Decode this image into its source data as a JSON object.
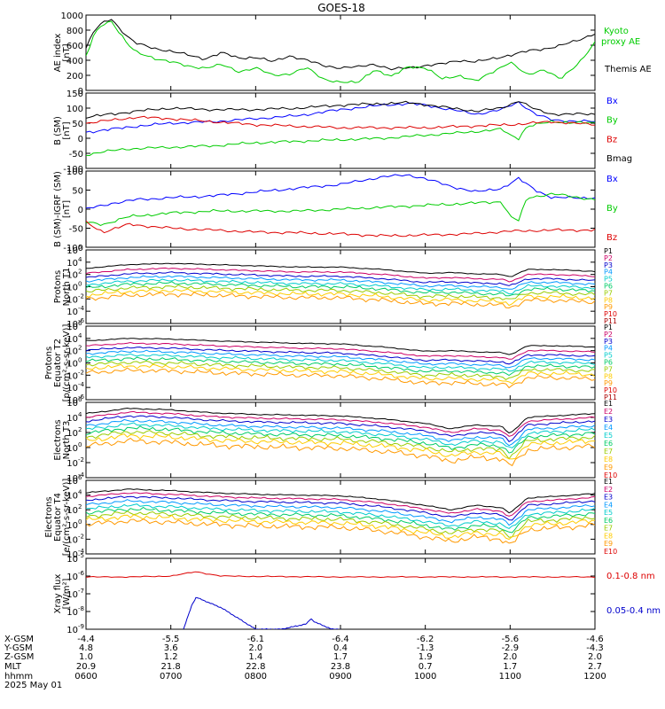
{
  "title": "GOES-18",
  "time_axis": {
    "start_hour": 6,
    "end_hour": 12,
    "tick_hours": [
      6,
      7,
      8,
      9,
      10,
      11,
      12
    ]
  },
  "chart_data": [
    {
      "type": "line",
      "name": "ae",
      "ylabel": [
        "AE index",
        "[nT]"
      ],
      "yscale": "linear",
      "ylim": [
        0,
        1000
      ],
      "yticks": [
        0,
        200,
        400,
        600,
        800,
        1000
      ],
      "series": [
        {
          "name": "Themis AE",
          "color": "#000000",
          "x": [
            6.0,
            6.1,
            6.2,
            6.3,
            6.4,
            6.5,
            6.6,
            6.8,
            7.0,
            7.2,
            7.4,
            7.6,
            7.8,
            8.0,
            8.2,
            8.4,
            8.6,
            8.8,
            9.0,
            9.2,
            9.4,
            9.6,
            9.8,
            10.0,
            10.2,
            10.4,
            10.6,
            10.8,
            11.0,
            11.2,
            11.4,
            11.6,
            11.8,
            12.0
          ],
          "y": [
            560,
            800,
            900,
            950,
            820,
            700,
            620,
            560,
            520,
            470,
            420,
            500,
            430,
            440,
            380,
            460,
            400,
            330,
            300,
            310,
            350,
            280,
            300,
            330,
            350,
            400,
            380,
            420,
            470,
            520,
            550,
            600,
            660,
            760
          ]
        },
        {
          "name": "Kyoto proxy AE",
          "color": "#00cc00",
          "x": [
            6.0,
            6.1,
            6.2,
            6.3,
            6.4,
            6.5,
            6.6,
            6.8,
            7.0,
            7.2,
            7.4,
            7.6,
            7.8,
            8.0,
            8.2,
            8.4,
            8.6,
            8.8,
            9.0,
            9.2,
            9.4,
            9.6,
            9.8,
            10.0,
            10.2,
            10.4,
            10.6,
            10.8,
            11.0,
            11.2,
            11.4,
            11.6,
            11.8,
            12.0
          ],
          "y": [
            450,
            750,
            880,
            920,
            760,
            600,
            500,
            430,
            380,
            320,
            300,
            340,
            250,
            300,
            200,
            220,
            300,
            150,
            110,
            100,
            280,
            180,
            320,
            300,
            150,
            200,
            120,
            250,
            380,
            200,
            280,
            150,
            350,
            640
          ]
        }
      ],
      "legend": [
        "Kyoto proxy AE",
        "Themis AE"
      ]
    },
    {
      "type": "line",
      "name": "bsm",
      "ylabel": [
        "B (SM)",
        "[nT]"
      ],
      "yscale": "linear",
      "ylim": [
        -100,
        150
      ],
      "yticks": [
        -100,
        -50,
        0,
        50,
        100,
        150
      ],
      "series": [
        {
          "name": "Bx",
          "color": "#0000ff",
          "x": [
            6.0,
            6.3,
            6.6,
            7.0,
            7.5,
            8.0,
            8.5,
            9.0,
            9.5,
            9.8,
            10.0,
            10.3,
            10.6,
            10.9,
            11.1,
            11.3,
            11.5,
            12.0
          ],
          "y": [
            20,
            30,
            40,
            50,
            55,
            65,
            75,
            95,
            110,
            115,
            110,
            95,
            80,
            95,
            120,
            80,
            60,
            55
          ]
        },
        {
          "name": "By",
          "color": "#00cc00",
          "x": [
            6.0,
            6.2,
            6.5,
            7.0,
            7.5,
            8.0,
            8.5,
            9.0,
            9.5,
            10.0,
            10.5,
            10.9,
            11.0,
            11.1,
            11.2,
            11.5,
            12.0
          ],
          "y": [
            -55,
            -45,
            -35,
            -30,
            -25,
            -15,
            -10,
            -5,
            0,
            10,
            20,
            30,
            10,
            0,
            40,
            55,
            50
          ]
        },
        {
          "name": "Bz",
          "color": "#dd0000",
          "x": [
            6.0,
            6.3,
            6.6,
            7.0,
            7.5,
            8.0,
            8.5,
            9.0,
            9.5,
            10.0,
            10.5,
            11.0,
            11.5,
            12.0
          ],
          "y": [
            50,
            60,
            70,
            65,
            55,
            45,
            40,
            35,
            35,
            35,
            40,
            45,
            55,
            45
          ]
        },
        {
          "name": "Bmag",
          "color": "#000000",
          "x": [
            6.0,
            6.3,
            6.6,
            7.0,
            7.5,
            8.0,
            8.5,
            9.0,
            9.5,
            9.8,
            10.0,
            10.3,
            10.6,
            10.9,
            11.1,
            11.3,
            11.5,
            12.0
          ],
          "y": [
            70,
            80,
            90,
            100,
            95,
            95,
            100,
            110,
            115,
            118,
            112,
            100,
            90,
            100,
            125,
            95,
            80,
            80
          ]
        }
      ],
      "legend": [
        "Bx",
        "By",
        "Bz",
        "Bmag"
      ]
    },
    {
      "type": "line",
      "name": "bigrf",
      "ylabel": [
        "B (SM)-IGRF (SM)",
        "[nT]"
      ],
      "yscale": "linear",
      "ylim": [
        -100,
        100
      ],
      "yticks": [
        -100,
        -50,
        0,
        50,
        100
      ],
      "series": [
        {
          "name": "Bx",
          "color": "#0000ff",
          "x": [
            6.0,
            6.3,
            6.6,
            7.0,
            7.5,
            8.0,
            8.5,
            9.0,
            9.5,
            9.8,
            10.0,
            10.3,
            10.6,
            10.9,
            11.1,
            11.3,
            11.5,
            12.0
          ],
          "y": [
            0,
            15,
            25,
            30,
            35,
            45,
            55,
            65,
            85,
            90,
            80,
            60,
            45,
            55,
            80,
            50,
            30,
            30
          ]
        },
        {
          "name": "By",
          "color": "#00cc00",
          "x": [
            6.0,
            6.2,
            6.5,
            7.0,
            7.5,
            8.0,
            8.5,
            9.0,
            9.5,
            10.0,
            10.5,
            10.9,
            11.0,
            11.1,
            11.2,
            11.5,
            12.0
          ],
          "y": [
            -35,
            -40,
            -20,
            -10,
            -5,
            -5,
            -5,
            0,
            5,
            10,
            15,
            20,
            -20,
            -30,
            30,
            40,
            25
          ]
        },
        {
          "name": "Bz",
          "color": "#dd0000",
          "x": [
            6.0,
            6.2,
            6.5,
            7.0,
            7.5,
            8.0,
            8.5,
            9.0,
            9.5,
            10.0,
            10.5,
            11.0,
            11.5,
            12.0
          ],
          "y": [
            -35,
            -60,
            -40,
            -50,
            -55,
            -60,
            -62,
            -65,
            -70,
            -68,
            -65,
            -58,
            -55,
            -55
          ]
        }
      ],
      "legend": [
        "Bx",
        "By",
        "Bz"
      ]
    },
    {
      "type": "line",
      "name": "protons_t1",
      "ylabel": [
        "Protons",
        "North T1"
      ],
      "yscale": "log",
      "ylim_exp": [
        -6,
        6
      ],
      "ytick_exps": [
        -6,
        -4,
        -2,
        0,
        2,
        4,
        6
      ],
      "channels": [
        "P1",
        "P2",
        "P3",
        "P4",
        "P5",
        "P6",
        "P7",
        "P8",
        "P9",
        "P10",
        "P11"
      ],
      "colors": [
        "#000000",
        "#cc0066",
        "#0000cc",
        "#0099ff",
        "#00cccc",
        "#00cc66",
        "#99cc00",
        "#ffcc00",
        "#ff9900",
        "#dd0000",
        "#aa0000"
      ],
      "x": [
        6.0,
        6.5,
        7.0,
        7.5,
        8.0,
        8.5,
        9.0,
        9.5,
        10.0,
        10.3,
        10.6,
        10.9,
        11.0,
        11.2,
        11.5,
        12.0
      ],
      "base": [
        3.0,
        3.6,
        3.8,
        3.6,
        3.4,
        3.2,
        3.2,
        2.8,
        2.2,
        2.3,
        2.1,
        2.0,
        1.6,
        2.8,
        2.8,
        2.5
      ],
      "offsets": [
        0,
        -0.8,
        -1.5,
        -2.1,
        -2.7,
        -3.2,
        -3.8,
        -4.4,
        -5.0
      ]
    },
    {
      "type": "line",
      "name": "protons_t2",
      "ylabel": [
        "Protons",
        "Equator T2",
        "[p/(cm²-s-sr-keV)]"
      ],
      "yscale": "log",
      "ylim_exp": [
        -6,
        6
      ],
      "ytick_exps": [
        -6,
        -4,
        -2,
        0,
        2,
        4,
        6
      ],
      "channels": [
        "P1",
        "P2",
        "P3",
        "P4",
        "P5",
        "P6",
        "P7",
        "P8",
        "P9",
        "P10",
        "P11"
      ],
      "colors": [
        "#000000",
        "#cc0066",
        "#0000cc",
        "#0099ff",
        "#00cccc",
        "#00cc66",
        "#99cc00",
        "#ffcc00",
        "#ff9900",
        "#dd0000",
        "#aa0000"
      ],
      "x": [
        6.0,
        6.5,
        7.0,
        7.5,
        8.0,
        8.5,
        9.0,
        9.5,
        10.0,
        10.3,
        10.6,
        10.9,
        11.0,
        11.2,
        11.5,
        12.0
      ],
      "base": [
        3.6,
        4.0,
        3.9,
        3.6,
        3.4,
        3.2,
        3.1,
        2.6,
        1.9,
        2.0,
        1.8,
        1.7,
        1.3,
        2.8,
        2.8,
        2.6
      ],
      "offsets": [
        0,
        -0.8,
        -1.5,
        -2.1,
        -2.7,
        -3.3,
        -3.9,
        -4.5,
        -5.2
      ]
    },
    {
      "type": "line",
      "name": "electrons_t3",
      "ylabel": [
        "Electrons",
        "North T3"
      ],
      "yscale": "log",
      "ylim_exp": [
        -4,
        6
      ],
      "ytick_exps": [
        -4,
        -2,
        0,
        2,
        4,
        6
      ],
      "channels": [
        "E1",
        "E2",
        "E3",
        "E4",
        "E5",
        "E6",
        "E7",
        "E8",
        "E9",
        "E10"
      ],
      "colors": [
        "#000000",
        "#cc0066",
        "#0000cc",
        "#0099ff",
        "#00cccc",
        "#00cc66",
        "#99cc00",
        "#ffcc00",
        "#ff9900",
        "#dd0000"
      ],
      "x": [
        6.0,
        6.5,
        7.0,
        7.5,
        8.0,
        8.5,
        9.0,
        9.5,
        10.0,
        10.3,
        10.6,
        10.9,
        11.0,
        11.2,
        11.5,
        12.0
      ],
      "base": [
        4.5,
        5.2,
        5.0,
        4.6,
        4.4,
        4.3,
        4.2,
        3.8,
        3.2,
        2.5,
        3.0,
        2.8,
        1.8,
        4.0,
        4.2,
        4.5
      ],
      "offsets": [
        0,
        -0.5,
        -1.0,
        -1.6,
        -2.1,
        -2.6,
        -3.1,
        -3.6,
        -4.3
      ]
    },
    {
      "type": "line",
      "name": "electrons_t4",
      "ylabel": [
        "Electrons",
        "Equator T4",
        "[e/(cm²-s-sr-keV)]"
      ],
      "yscale": "log",
      "ylim_exp": [
        -4,
        6
      ],
      "ytick_exps": [
        -4,
        -2,
        0,
        2,
        4,
        6
      ],
      "channels": [
        "E1",
        "E2",
        "E3",
        "E4",
        "E5",
        "E6",
        "E7",
        "E8",
        "E9",
        "E10"
      ],
      "colors": [
        "#000000",
        "#cc0066",
        "#0000cc",
        "#0099ff",
        "#00cccc",
        "#00cc66",
        "#99cc00",
        "#ffcc00",
        "#ff9900",
        "#dd0000"
      ],
      "x": [
        6.0,
        6.5,
        7.0,
        7.5,
        8.0,
        8.5,
        9.0,
        9.5,
        10.0,
        10.3,
        10.6,
        10.9,
        11.0,
        11.2,
        11.5,
        12.0
      ],
      "base": [
        4.3,
        4.8,
        4.6,
        4.3,
        4.1,
        4.0,
        3.9,
        3.4,
        2.6,
        2.0,
        2.6,
        2.3,
        1.5,
        3.6,
        3.8,
        4.2
      ],
      "offsets": [
        0,
        -0.5,
        -1.0,
        -1.6,
        -2.2,
        -2.7,
        -3.2,
        -3.7,
        -4.3
      ]
    },
    {
      "type": "line",
      "name": "xray",
      "ylabel": [
        "Xray flux",
        "[W/m²]"
      ],
      "yscale": "log",
      "ylim_exp": [
        -9,
        -5
      ],
      "ytick_exps": [
        -9,
        -8,
        -7,
        -6,
        -5
      ],
      "series": [
        {
          "name": "0.1-0.8 nm",
          "color": "#dd0000",
          "x": [
            6.0,
            6.5,
            7.0,
            7.3,
            7.4,
            7.6,
            8.0,
            9.0,
            10.0,
            11.0,
            12.0
          ],
          "y": [
            -6.05,
            -6.05,
            -6.0,
            -5.75,
            -5.85,
            -6.0,
            -6.02,
            -6.05,
            -6.05,
            -6.05,
            -6.05
          ]
        },
        {
          "name": "0.05-0.4 nm",
          "color": "#0000cc",
          "x": [
            7.15,
            7.2,
            7.25,
            7.3,
            7.4,
            7.5,
            7.6,
            7.7,
            7.8,
            7.9,
            8.0,
            8.3,
            8.4,
            8.6,
            8.65,
            8.7,
            8.8,
            8.9,
            9.0
          ],
          "y": [
            -9.0,
            -8.3,
            -7.6,
            -7.2,
            -7.4,
            -7.6,
            -7.8,
            -8.1,
            -8.4,
            -8.7,
            -9.0,
            -9.0,
            -8.9,
            -8.7,
            -8.4,
            -8.6,
            -8.8,
            -9.0,
            -9.0
          ]
        }
      ],
      "legend": [
        "0.1-0.8 nm",
        "0.05-0.4 nm"
      ]
    }
  ],
  "ephemeris": {
    "labels": [
      "X-GSM",
      "Y-GSM",
      "Z-GSM",
      "MLT",
      "hhmm",
      "2025 May 01"
    ],
    "rows": [
      [
        "-4.4",
        "-5.5",
        "-6.1",
        "-6.4",
        "-6.2",
        "-5.6",
        "-4.6"
      ],
      [
        "4.8",
        "3.6",
        "2.0",
        "0.4",
        "-1.3",
        "-2.9",
        "-4.3"
      ],
      [
        "1.0",
        "1.2",
        "1.4",
        "1.7",
        "1.9",
        "2.0",
        "2.0"
      ],
      [
        "20.9",
        "21.8",
        "22.8",
        "23.8",
        "0.7",
        "1.7",
        "2.7"
      ],
      [
        "0600",
        "0700",
        "0800",
        "0900",
        "1000",
        "1100",
        "1200"
      ]
    ]
  }
}
